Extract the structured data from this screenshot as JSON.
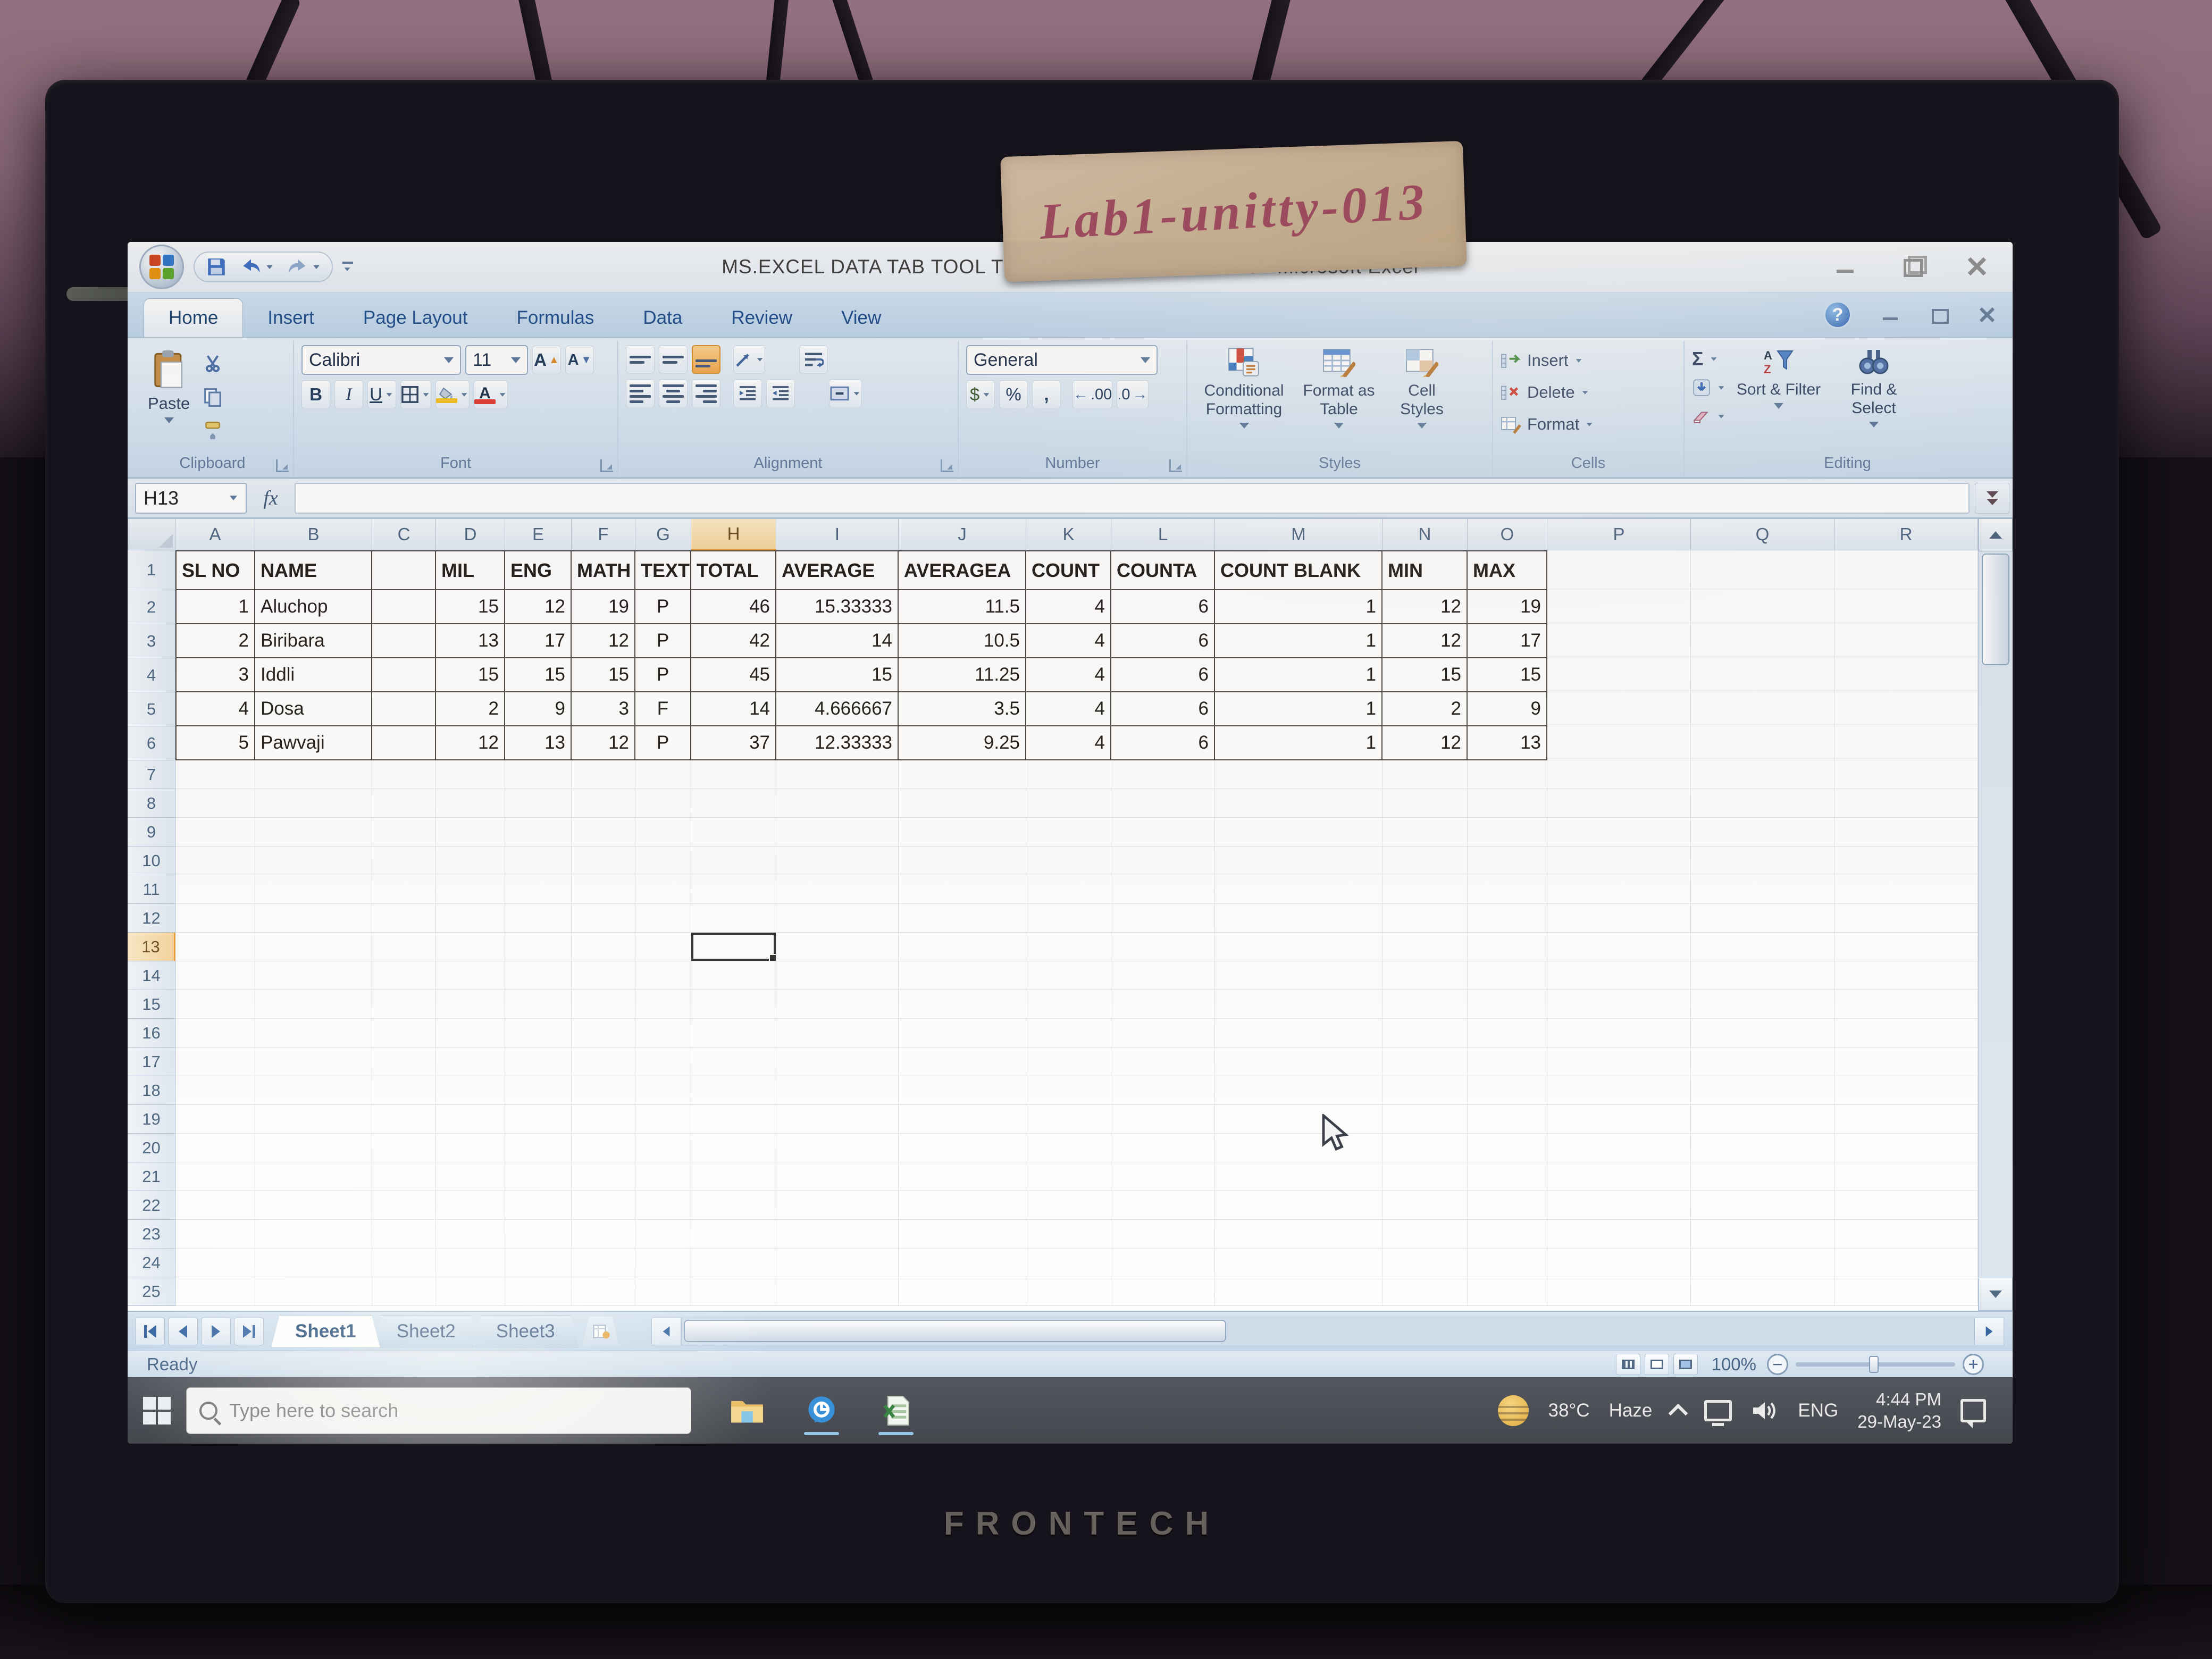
{
  "monitor": {
    "label": "Lab1-unitty-013",
    "brand": "FRONTECH"
  },
  "window": {
    "title": "MS.EXCEL DATA TAB TOOL TEXT TO COLUMN 29 05 23 - Microsoft Excel",
    "help_glyph": "?"
  },
  "ribbon": {
    "tabs": [
      {
        "label": "Home",
        "active": true
      },
      {
        "label": "Insert"
      },
      {
        "label": "Page Layout"
      },
      {
        "label": "Formulas"
      },
      {
        "label": "Data"
      },
      {
        "label": "Review"
      },
      {
        "label": "View"
      }
    ],
    "clipboard": {
      "label": "Clipboard",
      "paste": "Paste"
    },
    "font": {
      "label": "Font",
      "name": "Calibri",
      "size": "11",
      "bold": "B",
      "italic": "I",
      "underline": "U",
      "grow": "A",
      "shrink": "A",
      "color_a": "A"
    },
    "alignment": {
      "label": "Alignment"
    },
    "number": {
      "label": "Number",
      "format": "General",
      "currency": "$",
      "percent": "%",
      "comma": ",",
      "inc_dec": ".00",
      "dec_dec": ".0"
    },
    "styles": {
      "label": "Styles",
      "conditional": "Conditional Formatting",
      "format_table": "Format as Table",
      "cell_styles": "Cell Styles"
    },
    "cells": {
      "label": "Cells",
      "insert": "Insert",
      "delete": "Delete",
      "format": "Format"
    },
    "editing": {
      "label": "Editing",
      "autosum": "Σ",
      "sort_filter": "Sort & Filter",
      "find_select": "Find & Select"
    }
  },
  "formula_bar": {
    "name_box": "H13",
    "fx": "fx",
    "value": ""
  },
  "grid": {
    "selected_cell": "H13",
    "columns": [
      "A",
      "B",
      "C",
      "D",
      "E",
      "F",
      "G",
      "H",
      "I",
      "J",
      "K",
      "L",
      "M",
      "N",
      "O",
      "P",
      "Q",
      "R"
    ],
    "rows_total": 25,
    "table": {
      "header": [
        "SL NO",
        "NAME",
        "",
        "MIL",
        "ENG",
        "MATH",
        "TEXT",
        "TOTAL",
        "AVERAGE",
        "AVERAGEA",
        "COUNT",
        "COUNTA",
        "COUNT BLANK",
        "MIN",
        "MAX"
      ],
      "rows": [
        [
          "1",
          "Aluchop",
          "",
          "15",
          "12",
          "19",
          "P",
          "46",
          "15.33333",
          "11.5",
          "4",
          "6",
          "1",
          "12",
          "19"
        ],
        [
          "2",
          "Biribara",
          "",
          "13",
          "17",
          "12",
          "P",
          "42",
          "14",
          "10.5",
          "4",
          "6",
          "1",
          "12",
          "17"
        ],
        [
          "3",
          "Iddli",
          "",
          "15",
          "15",
          "15",
          "P",
          "45",
          "15",
          "11.25",
          "4",
          "6",
          "1",
          "15",
          "15"
        ],
        [
          "4",
          "Dosa",
          "",
          "2",
          "9",
          "3",
          "F",
          "14",
          "4.666667",
          "3.5",
          "4",
          "6",
          "1",
          "2",
          "9"
        ],
        [
          "5",
          "Pawvaji",
          "",
          "12",
          "13",
          "12",
          "P",
          "37",
          "12.33333",
          "9.25",
          "4",
          "6",
          "1",
          "12",
          "13"
        ]
      ]
    }
  },
  "sheet_bar": {
    "tabs": [
      {
        "label": "Sheet1",
        "active": true
      },
      {
        "label": "Sheet2"
      },
      {
        "label": "Sheet3"
      }
    ]
  },
  "status_bar": {
    "status": "Ready",
    "zoom": "100%"
  },
  "taskbar": {
    "search": "Type here to search",
    "temp": "38°C",
    "weather": "Haze",
    "lang": "ENG",
    "time": "4:44 PM",
    "date": "29-May-23"
  }
}
